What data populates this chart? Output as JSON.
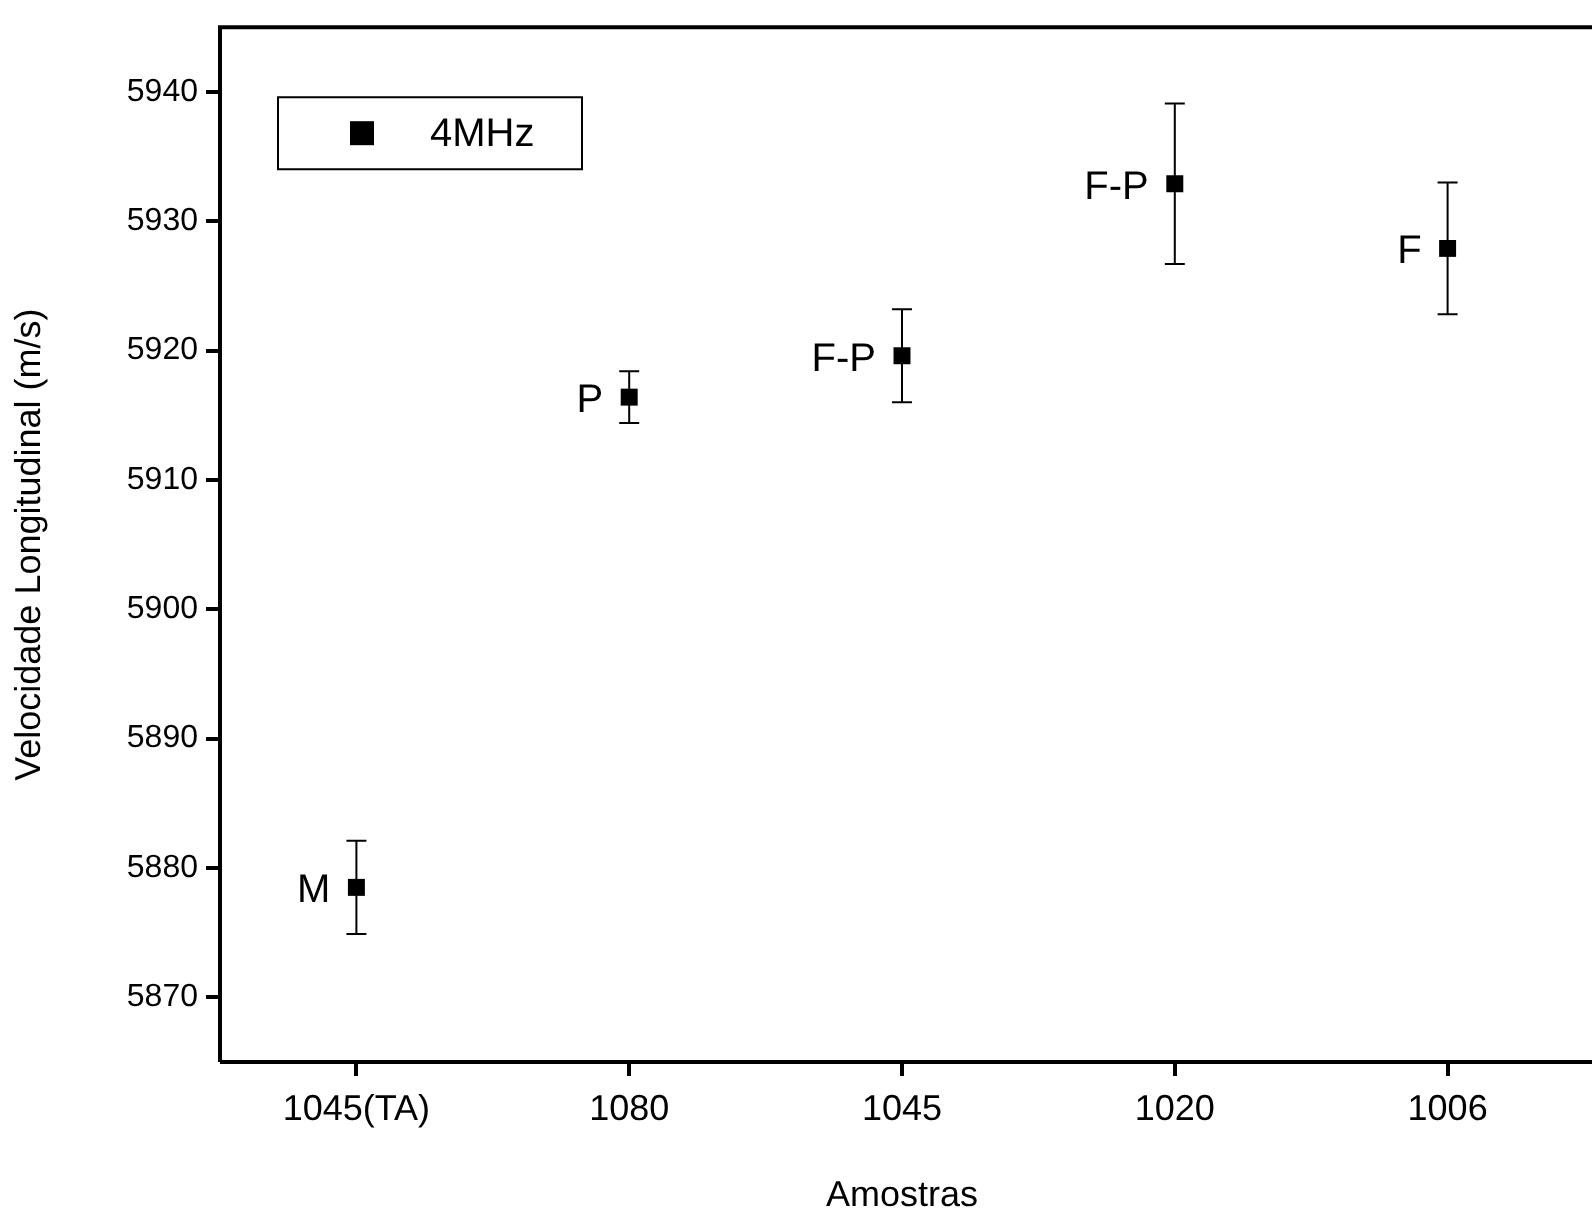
{
  "chart_data": {
    "type": "scatter",
    "xlabel": "Amostras",
    "ylabel": "Velocidade Longitudinal (m/s)",
    "categories": [
      "1045(TA)",
      "1080",
      "1045",
      "1020",
      "1006"
    ],
    "series": [
      {
        "name": "4MHz",
        "color": "#000000",
        "values": [
          5878.5,
          5916.4,
          5919.6,
          5932.9,
          5927.9
        ],
        "errors": [
          3.6,
          2.0,
          3.6,
          6.2,
          5.1
        ]
      }
    ],
    "ylim": [
      5865,
      5945
    ],
    "yticks": [
      5870,
      5880,
      5890,
      5900,
      5910,
      5920,
      5930,
      5940
    ],
    "marker": "square",
    "legend": "top left",
    "grid": false,
    "annotations": [
      {
        "text": "M",
        "x": "1045(TA)",
        "y": 5878.5
      },
      {
        "text": "P",
        "x": "1080",
        "y": 5916.4
      },
      {
        "text": "F-P",
        "x": "1045",
        "y": 5919.6
      },
      {
        "text": "F-P",
        "x": "1020",
        "y": 5932.9
      },
      {
        "text": "F",
        "x": "1006",
        "y": 5927.9
      }
    ]
  }
}
